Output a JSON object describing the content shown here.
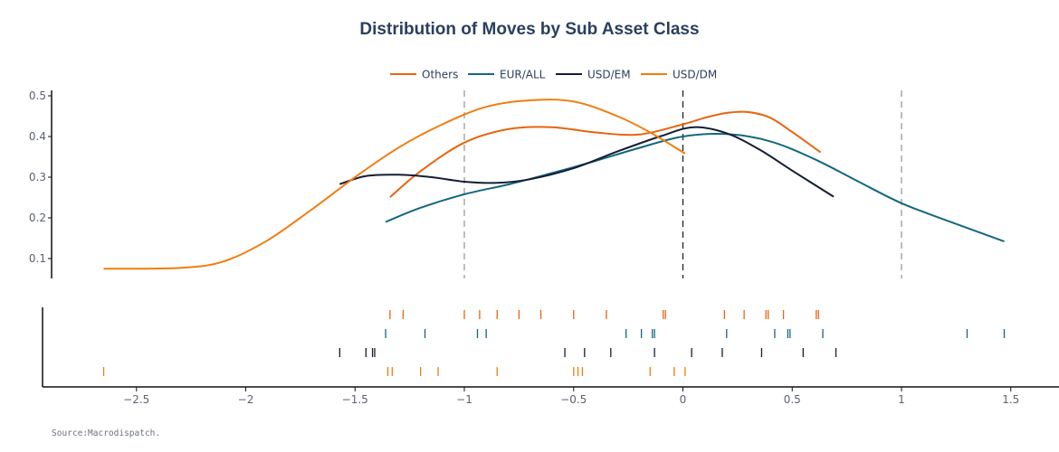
{
  "chart_data": {
    "type": "line",
    "title": "Distribution of Moves by Sub Asset Class",
    "source": "Source:Macrodispatch.",
    "xlabel": "",
    "ylabel": "",
    "xlim": [
      -2.95,
      1.7
    ],
    "ylim": [
      0.045,
      0.51
    ],
    "legend_position": "top-center",
    "colors": {
      "Others": "#e8640f",
      "EUR/ALL": "#13677f",
      "USD/EM": "#141d34",
      "USD/DM": "#f07d0f"
    },
    "x_ticks": [
      {
        "value": -2.5,
        "label": "−2.5"
      },
      {
        "value": -2.0,
        "label": "−2"
      },
      {
        "value": -1.5,
        "label": "−1.5"
      },
      {
        "value": -1.0,
        "label": "−1"
      },
      {
        "value": -0.5,
        "label": "−0.5"
      },
      {
        "value": 0.0,
        "label": "0"
      },
      {
        "value": 0.5,
        "label": "0.5"
      },
      {
        "value": 1.0,
        "label": "1"
      },
      {
        "value": 1.5,
        "label": "1.5"
      }
    ],
    "y_ticks": [
      {
        "value": 0.1,
        "label": "0.1"
      },
      {
        "value": 0.2,
        "label": "0.2"
      },
      {
        "value": 0.3,
        "label": "0.3"
      },
      {
        "value": 0.4,
        "label": "0.4"
      },
      {
        "value": 0.5,
        "label": "0.5"
      }
    ],
    "reference_lines": [
      {
        "x": -1.0,
        "color": "#9a9a9a"
      },
      {
        "x": 0.0,
        "color": "#222222"
      },
      {
        "x": 1.0,
        "color": "#9a9a9a"
      }
    ],
    "series": [
      {
        "name": "Others",
        "x": [
          -1.34,
          -1.2,
          -1.0,
          -0.8,
          -0.6,
          -0.4,
          -0.2,
          0.0,
          0.1,
          0.2,
          0.3,
          0.4,
          0.5,
          0.63
        ],
        "y": [
          0.251,
          0.315,
          0.385,
          0.418,
          0.423,
          0.41,
          0.405,
          0.43,
          0.446,
          0.458,
          0.46,
          0.446,
          0.411,
          0.361
        ],
        "rug": [
          -1.34,
          -1.28,
          -1.0,
          -0.93,
          -0.85,
          -0.75,
          -0.65,
          -0.5,
          -0.35,
          -0.09,
          -0.08,
          0.19,
          0.28,
          0.38,
          0.39,
          0.46,
          0.61,
          0.62
        ]
      },
      {
        "name": "EUR/ALL",
        "x": [
          -1.36,
          -1.2,
          -1.0,
          -0.8,
          -0.6,
          -0.4,
          -0.2,
          0.0,
          0.2,
          0.4,
          0.6,
          0.8,
          1.0,
          1.2,
          1.47
        ],
        "y": [
          0.19,
          0.225,
          0.258,
          0.282,
          0.31,
          0.34,
          0.372,
          0.4,
          0.406,
          0.388,
          0.345,
          0.29,
          0.236,
          0.195,
          0.142
        ],
        "rug": [
          -1.36,
          -1.18,
          -0.94,
          -0.9,
          -0.26,
          -0.19,
          -0.14,
          -0.13,
          0.2,
          0.42,
          0.48,
          0.49,
          0.64,
          1.3,
          1.47
        ]
      },
      {
        "name": "USD/EM",
        "x": [
          -1.57,
          -1.45,
          -1.3,
          -1.15,
          -1.0,
          -0.85,
          -0.7,
          -0.5,
          -0.3,
          -0.1,
          0.05,
          0.2,
          0.35,
          0.5,
          0.69
        ],
        "y": [
          0.283,
          0.303,
          0.306,
          0.3,
          0.289,
          0.286,
          0.295,
          0.322,
          0.363,
          0.401,
          0.423,
          0.408,
          0.368,
          0.316,
          0.252
        ],
        "rug": [
          -1.57,
          -1.45,
          -1.42,
          -1.41,
          -0.54,
          -0.45,
          -0.33,
          -0.13,
          0.04,
          0.18,
          0.36,
          0.55,
          0.7
        ]
      },
      {
        "name": "USD/DM",
        "x": [
          -2.65,
          -2.3,
          -2.1,
          -1.9,
          -1.7,
          -1.5,
          -1.3,
          -1.1,
          -0.9,
          -0.7,
          -0.5,
          -0.3,
          -0.15,
          0.01
        ],
        "y": [
          0.075,
          0.077,
          0.093,
          0.145,
          0.22,
          0.3,
          0.373,
          0.43,
          0.473,
          0.489,
          0.486,
          0.45,
          0.41,
          0.358
        ],
        "rug": [
          -2.65,
          -1.35,
          -1.33,
          -1.2,
          -1.12,
          -0.85,
          -0.5,
          -0.48,
          -0.46,
          -0.15,
          -0.04,
          0.01
        ]
      }
    ]
  }
}
